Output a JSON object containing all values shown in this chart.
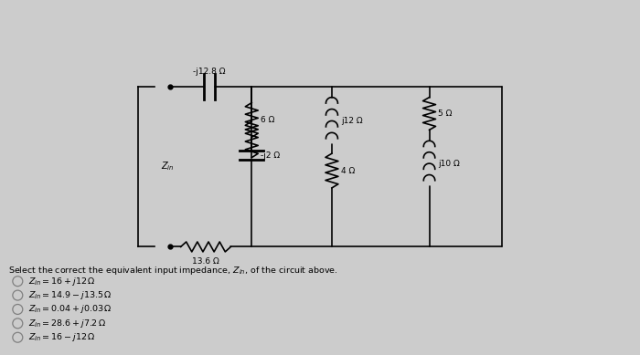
{
  "bg_color": "#cccccc",
  "title_text": "Select the correct the equivalent input impedance, $Z_{in}$, of the circuit above.",
  "options": [
    "$Z_{in} = 16 + j12\\,\\Omega$",
    "$Z_{in} = 14.9 - j13.5\\,\\Omega$",
    "$Z_{in} = 0.04 + j0.03\\,\\Omega$",
    "$Z_{in} = 28.6 + j7.2\\,\\Omega$",
    "$Z_{in} = 16 - j12\\,\\Omega$"
  ],
  "labels": {
    "cap_series": "-j12.8 Ω",
    "r1": "6 Ω",
    "l1": "j12 Ω",
    "cap2": "-j2 Ω",
    "r2": "4 Ω",
    "r3": "5 Ω",
    "l2": "j10 Ω",
    "r_bot": "13.6 Ω",
    "zin": "$Z_{in}$"
  }
}
